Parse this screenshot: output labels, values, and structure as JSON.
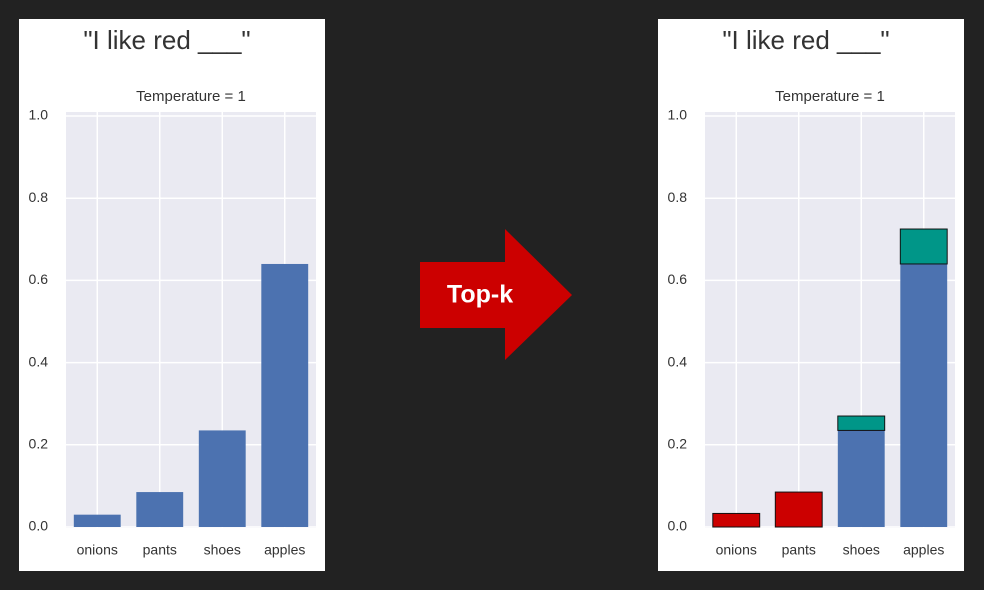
{
  "chart_data": [
    {
      "type": "bar",
      "heading": "\"I like red ___\"",
      "title": "Temperature = 1",
      "categories": [
        "onions",
        "pants",
        "shoes",
        "apples"
      ],
      "values": [
        0.03,
        0.085,
        0.235,
        0.64
      ],
      "color": "#4c72b0",
      "ylim": [
        0,
        1.0
      ],
      "yticks": [
        {
          "value": 0,
          "label": "0.0"
        },
        0.2,
        0.4,
        0.6,
        0.8,
        {
          "value": 1.0,
          "label": "1.0"
        }
      ],
      "grid": true
    },
    {
      "type": "bar",
      "heading": "\"I like red ___\"",
      "title": "Temperature = 1",
      "categories": [
        "onions",
        "pants",
        "shoes",
        "apples"
      ],
      "series": [
        {
          "color": "#4c72b0",
          "values": [
            null,
            null,
            0.235,
            0.64
          ]
        },
        {
          "color": "#cc0000",
          "values": [
            0.033,
            0.085,
            null,
            null
          ]
        },
        {
          "color": "#009688",
          "values": [
            null,
            null,
            0.035,
            0.085
          ]
        }
      ],
      "ylim": [
        0,
        1.0
      ],
      "yticks": [
        {
          "value": 0,
          "label": "0.0"
        },
        0.2,
        0.4,
        0.6,
        0.8,
        {
          "value": 1.0,
          "label": "1.0"
        }
      ],
      "grid": true
    }
  ],
  "arrow_label": "Top-k"
}
